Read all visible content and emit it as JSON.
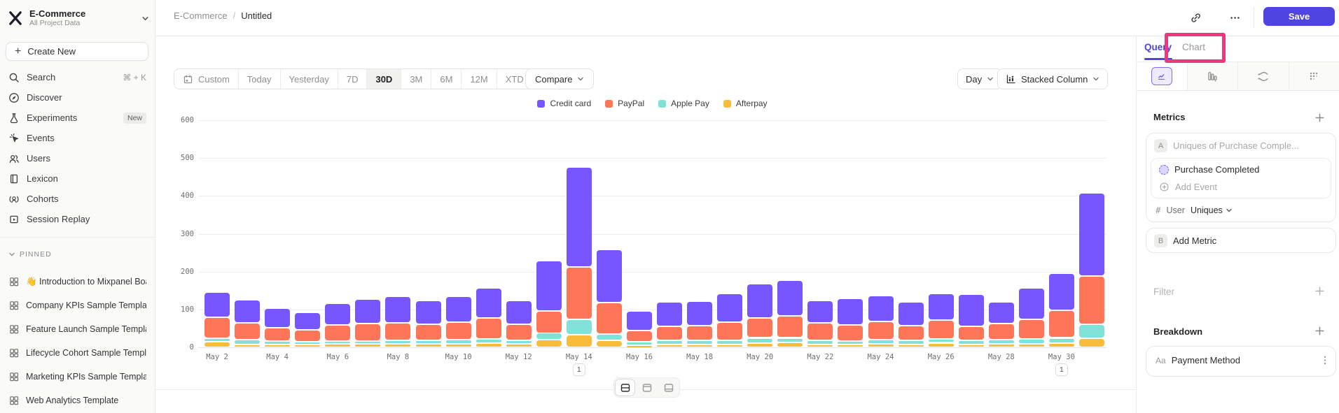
{
  "sidebar": {
    "workspace": {
      "name": "E-Commerce",
      "subtitle": "All Project Data"
    },
    "create_new_label": "Create New",
    "nav": [
      {
        "icon": "search-icon",
        "label": "Search",
        "shortcut": "⌘ + K"
      },
      {
        "icon": "discover-icon",
        "label": "Discover"
      },
      {
        "icon": "experiments-icon",
        "label": "Experiments",
        "badge": "New"
      },
      {
        "icon": "events-icon",
        "label": "Events"
      },
      {
        "icon": "users-icon",
        "label": "Users"
      },
      {
        "icon": "lexicon-icon",
        "label": "Lexicon"
      },
      {
        "icon": "cohorts-icon",
        "label": "Cohorts"
      },
      {
        "icon": "session-replay-icon",
        "label": "Session Replay"
      }
    ],
    "pinned": {
      "header": "PINNED",
      "items": [
        "👋 Introduction to Mixpanel Boards",
        "Company KPIs Sample Template",
        "Feature Launch Sample Template",
        "Lifecycle Cohort Sample Template",
        "Marketing KPIs Sample Template",
        "Web Analytics Template"
      ]
    }
  },
  "header": {
    "breadcrumb_root": "E-Commerce",
    "breadcrumb_sep": "/",
    "breadcrumb_current": "Untitled",
    "save_label": "Save"
  },
  "toolbar": {
    "date_ranges": [
      "Custom",
      "Today",
      "Yesterday",
      "7D",
      "30D",
      "3M",
      "6M",
      "12M",
      "XTD"
    ],
    "active_range": "30D",
    "compare_label": "Compare",
    "granularity": "Day",
    "chart_type": "Stacked Column"
  },
  "inspector": {
    "tab_query": "Query",
    "tab_chart": "Chart",
    "metrics_title": "Metrics",
    "metric_a_badge": "A",
    "metric_a_placeholder": "Uniques of Purchase Comple...",
    "event_name": "Purchase Completed",
    "add_event_label": "Add Event",
    "agg_hash": "#",
    "agg_entity": "User",
    "agg_fn": "Uniques",
    "metric_b_badge": "B",
    "add_metric_label": "Add Metric",
    "filter_label": "Filter",
    "breakdown_label": "Breakdown",
    "breakdown_property_prefix": "Aa",
    "breakdown_property": "Payment Method"
  },
  "chart_data": {
    "type": "bar",
    "stacked": true,
    "title": "",
    "xlabel": "",
    "ylabel": "",
    "ylim": [
      0,
      600
    ],
    "ytick_step": 100,
    "legend_position": "top-center",
    "grid": true,
    "categories": [
      "May 2",
      "May 3",
      "May 4",
      "May 5",
      "May 6",
      "May 7",
      "May 8",
      "May 9",
      "May 10",
      "May 11",
      "May 12",
      "May 13",
      "May 14",
      "May 15",
      "May 16",
      "May 17",
      "May 18",
      "May 19",
      "May 20",
      "May 21",
      "May 22",
      "May 23",
      "May 24",
      "May 25",
      "May 26",
      "May 27",
      "May 28",
      "May 29",
      "May 30",
      "May 31"
    ],
    "xtick_labels": [
      "May 2",
      "May 4",
      "May 6",
      "May 8",
      "May 10",
      "May 12",
      "May 14",
      "May 16",
      "May 18",
      "May 20",
      "May 22",
      "May 24",
      "May 26",
      "May 28",
      "May 30"
    ],
    "series": [
      {
        "name": "Credit card",
        "color": "#7856FF",
        "values": [
          67,
          60,
          52,
          45,
          58,
          65,
          70,
          62,
          68,
          80,
          62,
          132,
          263,
          139,
          52,
          64,
          65,
          75,
          90,
          95,
          60,
          71,
          68,
          62,
          70,
          85,
          58,
          83,
          98,
          221
        ]
      },
      {
        "name": "PayPal",
        "color": "#FF7557",
        "values": [
          55,
          45,
          35,
          32,
          42,
          45,
          46,
          43,
          46,
          55,
          43,
          59,
          139,
          84,
          30,
          38,
          39,
          48,
          53,
          58,
          45,
          42,
          47,
          40,
          50,
          38,
          42,
          52,
          73,
          127
        ]
      },
      {
        "name": "Apple Pay",
        "color": "#80E1D9",
        "values": [
          9,
          12,
          8,
          8,
          8,
          8,
          9,
          9,
          11,
          11,
          9,
          18,
          40,
          17,
          8,
          10,
          10,
          11,
          14,
          12,
          11,
          10,
          12,
          10,
          10,
          10,
          11,
          13,
          13,
          37
        ]
      },
      {
        "name": "Afterpay",
        "color": "#F8BC3B",
        "values": [
          15,
          8,
          8,
          7,
          9,
          9,
          9,
          9,
          9,
          11,
          9,
          20,
          34,
          18,
          6,
          8,
          8,
          8,
          11,
          13,
          8,
          7,
          9,
          8,
          12,
          8,
          9,
          9,
          12,
          24
        ]
      }
    ],
    "annotations": [
      {
        "label": "1",
        "date": "May 14"
      },
      {
        "label": "1",
        "date": "May 30"
      }
    ]
  }
}
